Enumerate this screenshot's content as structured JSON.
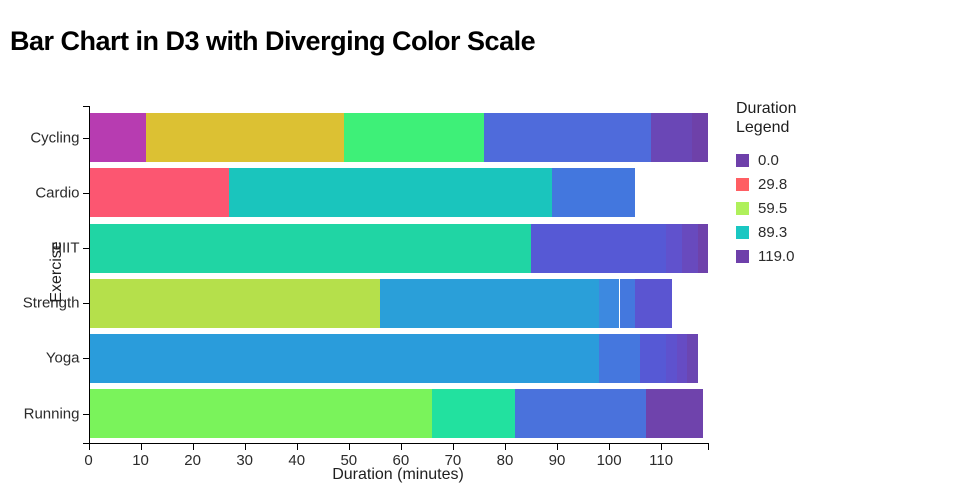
{
  "chart_data": {
    "type": "bar",
    "orientation": "horizontal-stacked",
    "title": "Bar Chart in D3 with Diverging Color Scale",
    "xlabel": "Duration (minutes)",
    "ylabel": "Exercise",
    "xlim": [
      0,
      119
    ],
    "x_ticks": [
      0,
      10,
      20,
      30,
      40,
      50,
      60,
      70,
      80,
      90,
      100,
      110
    ],
    "grid": false,
    "legend_position": "right",
    "categories": [
      "Cycling",
      "Cardio",
      "HIIT",
      "Strength",
      "Yoga",
      "Running"
    ],
    "series": [
      {
        "category": "Cycling",
        "segments": [
          {
            "from": 0,
            "to": 11,
            "color": "#b73cb1"
          },
          {
            "from": 11,
            "to": 49,
            "color": "#dcc133"
          },
          {
            "from": 49,
            "to": 76,
            "color": "#3ef078"
          },
          {
            "from": 76,
            "to": 108,
            "color": "#4f6bdb"
          },
          {
            "from": 108,
            "to": 116,
            "color": "#6a47b6"
          },
          {
            "from": 116,
            "to": 119,
            "color": "#6e41a9"
          }
        ]
      },
      {
        "category": "Cardio",
        "segments": [
          {
            "from": 0,
            "to": 27,
            "color": "#fc5671"
          },
          {
            "from": 27,
            "to": 89,
            "color": "#1ac5bd"
          },
          {
            "from": 89,
            "to": 105,
            "color": "#4377de"
          }
        ]
      },
      {
        "category": "HIIT",
        "segments": [
          {
            "from": 0,
            "to": 85,
            "color": "#20d5a4"
          },
          {
            "from": 85,
            "to": 111,
            "color": "#5659d5"
          },
          {
            "from": 111,
            "to": 114,
            "color": "#6052cd"
          },
          {
            "from": 114,
            "to": 117,
            "color": "#684abe"
          },
          {
            "from": 117,
            "to": 119,
            "color": "#6e42ab"
          }
        ]
      },
      {
        "category": "Strength",
        "segments": [
          {
            "from": 0,
            "to": 56,
            "color": "#b5e04b"
          },
          {
            "from": 56,
            "to": 98,
            "color": "#2a9fd9"
          },
          {
            "from": 98,
            "to": 102,
            "color": "#3d89e0"
          },
          {
            "from": 102,
            "to": 105,
            "color": "#4478de"
          },
          {
            "from": 105,
            "to": 112,
            "color": "#5b55d1"
          }
        ]
      },
      {
        "category": "Yoga",
        "segments": [
          {
            "from": 0,
            "to": 98,
            "color": "#2a9cdb"
          },
          {
            "from": 98,
            "to": 106,
            "color": "#4577de"
          },
          {
            "from": 106,
            "to": 111,
            "color": "#5659d5"
          },
          {
            "from": 111,
            "to": 113,
            "color": "#5e52ce"
          },
          {
            "from": 113,
            "to": 115,
            "color": "#664cc4"
          },
          {
            "from": 115,
            "to": 117,
            "color": "#6b46b2"
          }
        ]
      },
      {
        "category": "Running",
        "segments": [
          {
            "from": 0,
            "to": 66,
            "color": "#7af35b"
          },
          {
            "from": 66,
            "to": 82,
            "color": "#22e19f"
          },
          {
            "from": 82,
            "to": 107,
            "color": "#4a72dc"
          },
          {
            "from": 107,
            "to": 118,
            "color": "#6f43ac"
          }
        ]
      }
    ]
  },
  "legend": {
    "title": "Duration Legend",
    "items": [
      {
        "label": "0.0",
        "color": "#6e40aa"
      },
      {
        "label": "29.8",
        "color": "#ff5e63"
      },
      {
        "label": "59.5",
        "color": "#aff05b"
      },
      {
        "label": "89.3",
        "color": "#1ac7c2"
      },
      {
        "label": "119.0",
        "color": "#6e40aa"
      }
    ]
  }
}
